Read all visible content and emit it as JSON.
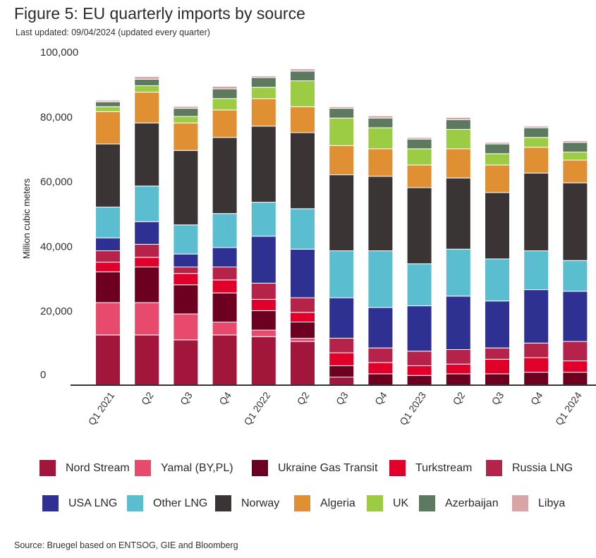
{
  "title": "Figure 5: EU quarterly imports by source",
  "subtitle": "Last updated: 09/04/2024 (updated every quarter)",
  "source": "Source: Bruegel based on ENTSOG, GIE and Bloomberg",
  "chart_data": {
    "type": "bar",
    "stacked": true,
    "title": "Figure 5: EU quarterly imports by source",
    "xlabel": "",
    "ylabel": "Million cubic meters",
    "ylim": [
      0,
      100000
    ],
    "yticks": [
      0,
      20000,
      40000,
      60000,
      80000,
      100000
    ],
    "ytick_labels": [
      "0",
      "20,000",
      "40,000",
      "60,000",
      "80,000",
      "100,000"
    ],
    "grid": false,
    "legend_position": "bottom",
    "categories": [
      "Q1 2021",
      "Q2",
      "Q3",
      "Q4",
      "Q1 2022",
      "Q2",
      "Q3",
      "Q4",
      "Q1 2023",
      "Q2",
      "Q3",
      "Q4",
      "Q1 2024"
    ],
    "series": [
      {
        "name": "Nord Stream",
        "color": "#a3163b",
        "values": [
          15500,
          15500,
          14000,
          15500,
          15000,
          13500,
          2500,
          0,
          0,
          0,
          0,
          0,
          0
        ]
      },
      {
        "name": "Yamal (BY,PL)",
        "color": "#e84a6e",
        "values": [
          10000,
          10000,
          8000,
          4000,
          2000,
          1000,
          0,
          0,
          0,
          0,
          0,
          0,
          0
        ]
      },
      {
        "name": "Ukraine Gas Transit",
        "color": "#6d0020",
        "values": [
          9500,
          11000,
          9000,
          9000,
          6000,
          5000,
          3500,
          3500,
          3000,
          3500,
          3500,
          4000,
          4000
        ]
      },
      {
        "name": "Turkstream",
        "color": "#e0002a",
        "values": [
          3000,
          3000,
          3500,
          4000,
          3500,
          3000,
          4000,
          3500,
          3000,
          3000,
          4500,
          4500,
          3500
        ]
      },
      {
        "name": "Russia LNG",
        "color": "#b5234a",
        "values": [
          3500,
          4000,
          2000,
          4000,
          5000,
          4500,
          4500,
          4500,
          4500,
          4500,
          3500,
          4500,
          6000
        ]
      },
      {
        "name": "USA LNG",
        "color": "#2e3192",
        "values": [
          4000,
          7000,
          4000,
          6000,
          14500,
          15000,
          12500,
          12500,
          14000,
          16500,
          14500,
          16500,
          15500
        ]
      },
      {
        "name": "Other LNG",
        "color": "#5bbdd0",
        "values": [
          9500,
          11000,
          9000,
          10500,
          10500,
          12500,
          14500,
          17500,
          13000,
          14500,
          13000,
          12000,
          9500
        ]
      },
      {
        "name": "Norway",
        "color": "#3b3434",
        "values": [
          19500,
          19500,
          23000,
          23500,
          23500,
          23500,
          23500,
          23000,
          23500,
          22000,
          20500,
          24000,
          24000
        ]
      },
      {
        "name": "Algeria",
        "color": "#e09032",
        "values": [
          10000,
          9500,
          8500,
          8500,
          8500,
          8000,
          9000,
          8500,
          7000,
          9000,
          8500,
          8000,
          7000
        ]
      },
      {
        "name": "UK",
        "color": "#9ccc44",
        "values": [
          1500,
          2000,
          2000,
          3500,
          3500,
          8000,
          8500,
          6500,
          5000,
          6000,
          3500,
          3000,
          2500
        ]
      },
      {
        "name": "Azerbaijan",
        "color": "#5d7a60",
        "values": [
          1500,
          2000,
          2500,
          3000,
          3000,
          3000,
          3000,
          3000,
          3000,
          3000,
          3000,
          3000,
          3000
        ]
      },
      {
        "name": "Libya",
        "color": "#d9a4a6",
        "values": [
          500,
          800,
          600,
          800,
          500,
          700,
          500,
          700,
          500,
          700,
          500,
          500,
          500
        ]
      }
    ]
  }
}
